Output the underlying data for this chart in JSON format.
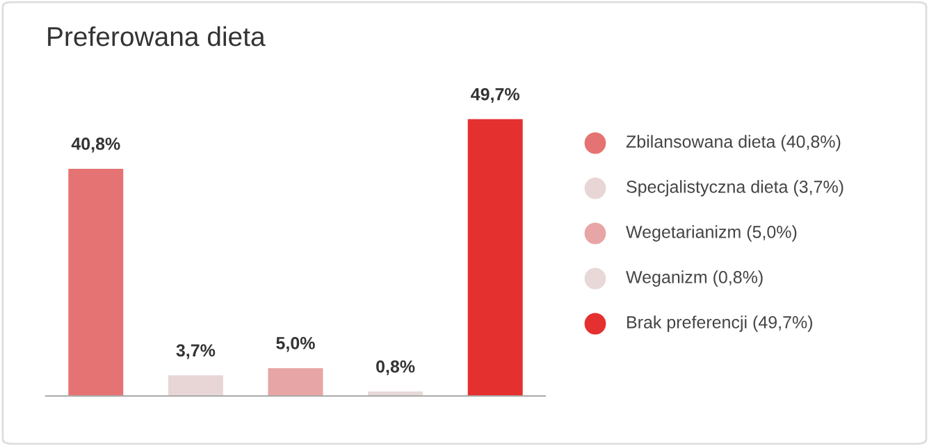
{
  "chart_data": {
    "type": "bar",
    "title": "Preferowana dieta",
    "categories": [
      null,
      null,
      null,
      null,
      null
    ],
    "values": [
      40.8,
      3.7,
      5.0,
      0.8,
      49.7
    ],
    "colors": [
      "#e57373",
      "#e8d6d6",
      "#e8a5a5",
      "#e8d8d8",
      "#e53030"
    ],
    "value_labels": [
      "40,8%",
      "3,7%",
      "5,0%",
      "0,8%",
      "49,7%"
    ],
    "annotations": [
      "Zbilansowana dieta (40,8%)",
      "Specjalistyczna dieta (3,7%)",
      "Wegetarianizm (5,0%)",
      "Weganizm (0,8%)",
      "Brak preferencji (49,7%)"
    ],
    "grid": false
  }
}
